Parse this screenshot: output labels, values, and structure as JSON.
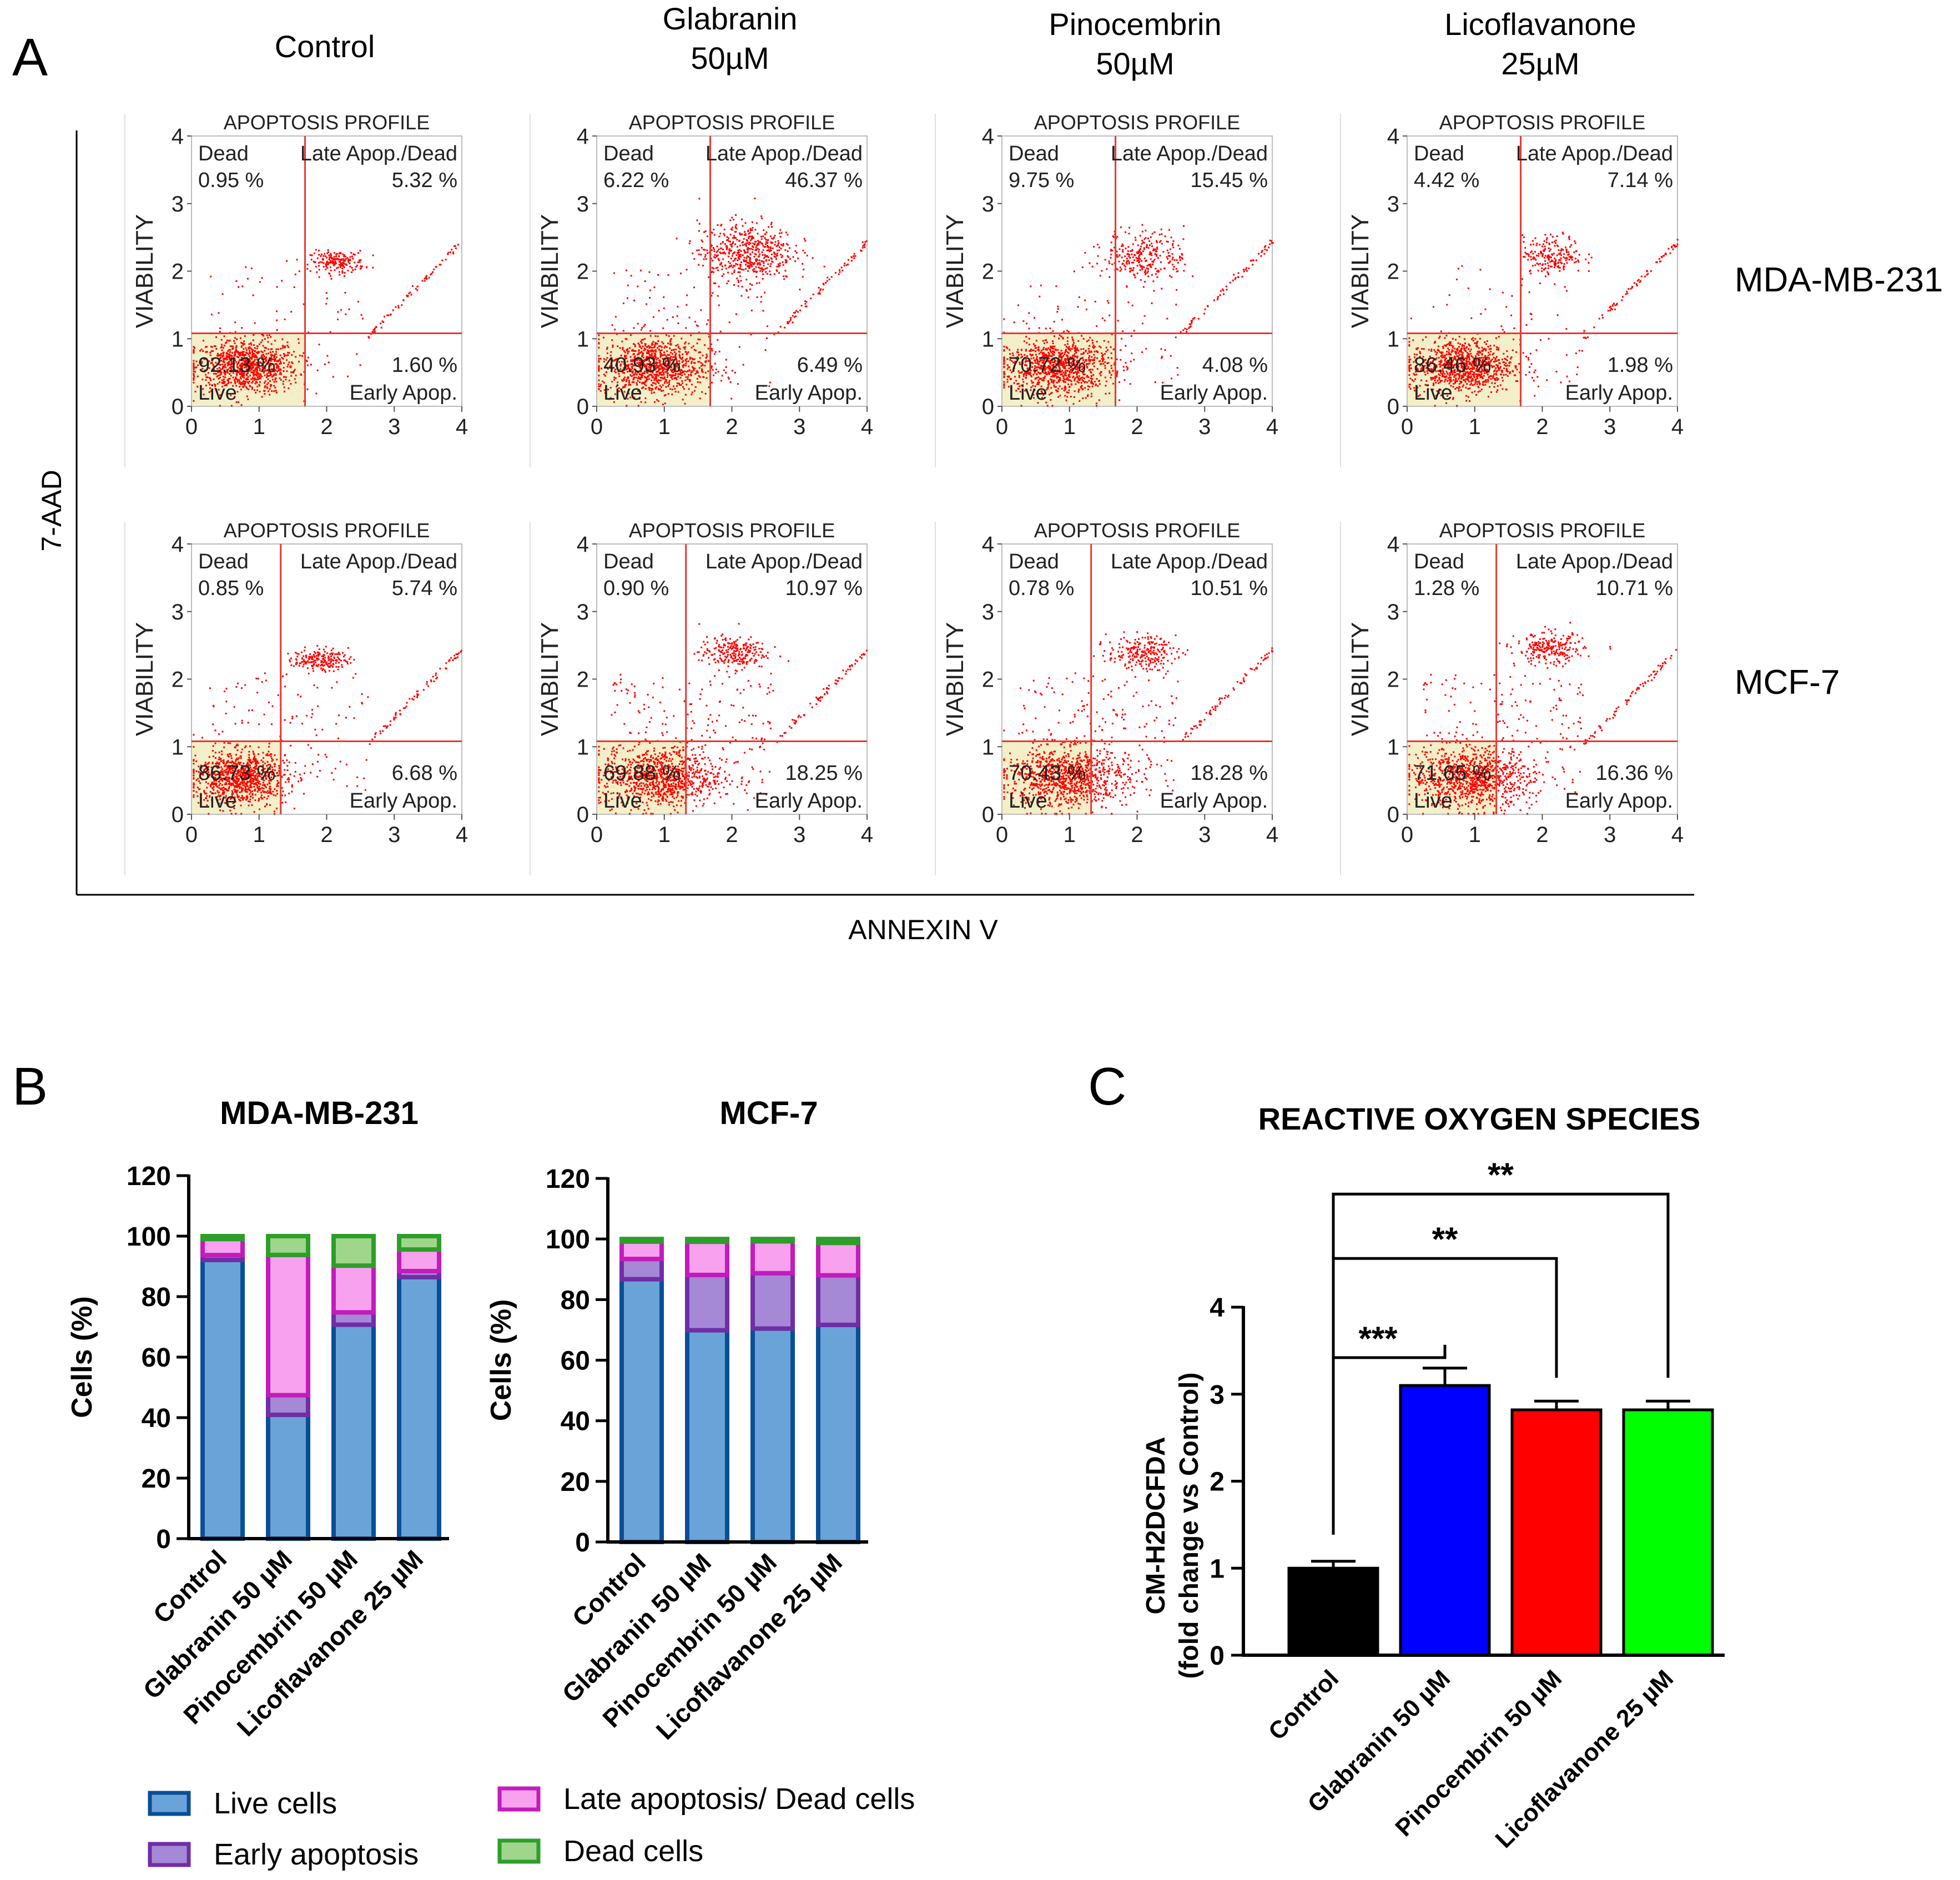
{
  "panel_labels": {
    "a": "A",
    "b": "B",
    "c": "C"
  },
  "colors": {
    "red": "#ff0000",
    "quadrant_line": "#e53935",
    "live_bg": "#f3efc8",
    "live_fill": "#6aa3d8",
    "live_edge": "#0a4f96",
    "early_fill": "#a589d6",
    "early_edge": "#6f2ea6",
    "late_fill": "#f7a1ef",
    "late_edge": "#c21cba",
    "dead_fill": "#9fd68c",
    "dead_edge": "#2e9e2a",
    "ros_control": "#000000",
    "ros_glabranin": "#0000ff",
    "ros_pinocembrin": "#ff0000",
    "ros_licoflavanone": "#00ff00"
  },
  "panel_a": {
    "columns": [
      "Control",
      "Glabranin\n50µM",
      "Pinocembrin\n50µM",
      "Licoflavanone\n25µM"
    ],
    "rows": [
      "MDA-MB-231",
      "MCF-7"
    ],
    "y_axis_label": "7-AAD",
    "x_axis_label": "ANNEXIN V",
    "plot_title": "APOPTOSIS PROFILE",
    "plot_ylabel": "VIABILITY",
    "ticks": [
      "0",
      "1",
      "2",
      "3",
      "4"
    ],
    "quadrant_names": {
      "dead": "Dead",
      "late": "Late Apop./Dead",
      "live": "Live",
      "early": "Early Apop."
    }
  },
  "chart_data": [
    {
      "type": "scatter",
      "title": "APOPTOSIS PROFILE",
      "xlabel": "ANNEXIN V",
      "ylabel": "VIABILITY",
      "xlim": [
        0,
        4
      ],
      "ylim": [
        0,
        4
      ],
      "gates": {
        "x": 1.68,
        "y": 1.08
      },
      "cell_line": "MDA-MB-231",
      "treatment": "Control",
      "quadrants": {
        "dead": "0.95 %",
        "late": "5.32 %",
        "live": "92.13 %",
        "early": "1.60 %"
      },
      "clusters": [
        {
          "name": "live",
          "cx": 0.8,
          "cy": 0.6,
          "sx": 0.38,
          "sy": 0.2
        },
        {
          "name": "late",
          "cx": 2.15,
          "cy": 2.15,
          "sx": 0.2,
          "sy": 0.08
        }
      ]
    },
    {
      "type": "scatter",
      "title": "APOPTOSIS PROFILE",
      "xlabel": "ANNEXIN V",
      "ylabel": "VIABILITY",
      "xlim": [
        0,
        4
      ],
      "ylim": [
        0,
        4
      ],
      "gates": {
        "x": 1.68,
        "y": 1.08
      },
      "cell_line": "MDA-MB-231",
      "treatment": "Glabranin 50µM",
      "quadrants": {
        "dead": "6.22 %",
        "late": "46.37 %",
        "live": "40.93 %",
        "early": "6.49 %"
      },
      "clusters": [
        {
          "name": "live",
          "cx": 0.85,
          "cy": 0.6,
          "sx": 0.4,
          "sy": 0.22
        },
        {
          "name": "late",
          "cx": 2.2,
          "cy": 2.3,
          "sx": 0.35,
          "sy": 0.22
        }
      ]
    },
    {
      "type": "scatter",
      "title": "APOPTOSIS PROFILE",
      "xlabel": "ANNEXIN V",
      "ylabel": "VIABILITY",
      "xlim": [
        0,
        4
      ],
      "ylim": [
        0,
        4
      ],
      "gates": {
        "x": 1.68,
        "y": 1.08
      },
      "cell_line": "MDA-MB-231",
      "treatment": "Pinocembrin 50µM",
      "quadrants": {
        "dead": "9.75 %",
        "late": "15.45 %",
        "live": "70.72 %",
        "early": "4.08 %"
      },
      "clusters": [
        {
          "name": "live",
          "cx": 0.8,
          "cy": 0.6,
          "sx": 0.4,
          "sy": 0.22
        },
        {
          "name": "late",
          "cx": 2.1,
          "cy": 2.25,
          "sx": 0.3,
          "sy": 0.18
        }
      ]
    },
    {
      "type": "scatter",
      "title": "APOPTOSIS PROFILE",
      "xlabel": "ANNEXIN V",
      "ylabel": "VIABILITY",
      "xlim": [
        0,
        4
      ],
      "ylim": [
        0,
        4
      ],
      "gates": {
        "x": 1.68,
        "y": 1.08
      },
      "cell_line": "MDA-MB-231",
      "treatment": "Licoflavanone 25µM",
      "quadrants": {
        "dead": "4.42 %",
        "late": "7.14 %",
        "live": "86.46 %",
        "early": "1.98 %"
      },
      "clusters": [
        {
          "name": "live",
          "cx": 0.8,
          "cy": 0.6,
          "sx": 0.38,
          "sy": 0.2
        },
        {
          "name": "late",
          "cx": 2.15,
          "cy": 2.25,
          "sx": 0.22,
          "sy": 0.14
        }
      ]
    },
    {
      "type": "scatter",
      "title": "APOPTOSIS PROFILE",
      "xlabel": "ANNEXIN V",
      "ylabel": "VIABILITY",
      "xlim": [
        0,
        4
      ],
      "ylim": [
        0,
        4
      ],
      "gates": {
        "x": 1.32,
        "y": 1.08
      },
      "cell_line": "MCF-7",
      "treatment": "Control",
      "quadrants": {
        "dead": "0.85 %",
        "late": "5.74 %",
        "live": "86.73 %",
        "early": "6.68 %"
      },
      "clusters": [
        {
          "name": "live",
          "cx": 0.7,
          "cy": 0.55,
          "sx": 0.35,
          "sy": 0.2
        },
        {
          "name": "late",
          "cx": 1.9,
          "cy": 2.3,
          "sx": 0.2,
          "sy": 0.08
        }
      ]
    },
    {
      "type": "scatter",
      "title": "APOPTOSIS PROFILE",
      "xlabel": "ANNEXIN V",
      "ylabel": "VIABILITY",
      "xlim": [
        0,
        4
      ],
      "ylim": [
        0,
        4
      ],
      "gates": {
        "x": 1.32,
        "y": 1.08
      },
      "cell_line": "MCF-7",
      "treatment": "Glabranin 50µM",
      "quadrants": {
        "dead": "0.90 %",
        "late": "10.97 %",
        "live": "69.88 %",
        "early": "18.25 %"
      },
      "clusters": [
        {
          "name": "live",
          "cx": 0.95,
          "cy": 0.55,
          "sx": 0.45,
          "sy": 0.22
        },
        {
          "name": "late",
          "cx": 2.0,
          "cy": 2.4,
          "sx": 0.25,
          "sy": 0.12
        }
      ]
    },
    {
      "type": "scatter",
      "title": "APOPTOSIS PROFILE",
      "xlabel": "ANNEXIN V",
      "ylabel": "VIABILITY",
      "xlim": [
        0,
        4
      ],
      "ylim": [
        0,
        4
      ],
      "gates": {
        "x": 1.32,
        "y": 1.08
      },
      "cell_line": "MCF-7",
      "treatment": "Pinocembrin 50µM",
      "quadrants": {
        "dead": "0.78 %",
        "late": "10.51 %",
        "live": "70.43 %",
        "early": "18.28 %"
      },
      "clusters": [
        {
          "name": "live",
          "cx": 0.95,
          "cy": 0.55,
          "sx": 0.45,
          "sy": 0.22
        },
        {
          "name": "late",
          "cx": 2.05,
          "cy": 2.4,
          "sx": 0.25,
          "sy": 0.12
        }
      ]
    },
    {
      "type": "scatter",
      "title": "APOPTOSIS PROFILE",
      "xlabel": "ANNEXIN V",
      "ylabel": "VIABILITY",
      "xlim": [
        0,
        4
      ],
      "ylim": [
        0,
        4
      ],
      "gates": {
        "x": 1.32,
        "y": 1.08
      },
      "cell_line": "MCF-7",
      "treatment": "Licoflavanone 25µM",
      "quadrants": {
        "dead": "1.28 %",
        "late": "10.71 %",
        "live": "71.65 %",
        "early": "16.36 %"
      },
      "clusters": [
        {
          "name": "live",
          "cx": 0.95,
          "cy": 0.55,
          "sx": 0.45,
          "sy": 0.22
        },
        {
          "name": "late",
          "cx": 2.1,
          "cy": 2.45,
          "sx": 0.25,
          "sy": 0.12
        }
      ]
    },
    {
      "type": "bar",
      "stacked": true,
      "title": "MDA-MB-231",
      "ylabel": "Cells (%)",
      "ylim": [
        0,
        120
      ],
      "yticks": [
        0,
        20,
        40,
        60,
        80,
        100,
        120
      ],
      "categories": [
        "Control",
        "Glabranin 50 µM",
        "Pinocembrin 50 µM",
        "Licoflavanone 25 µM"
      ],
      "series": [
        {
          "name": "Live cells",
          "values": [
            92.13,
            40.93,
            70.72,
            86.46
          ]
        },
        {
          "name": "Early apoptosis",
          "values": [
            1.6,
            6.49,
            4.08,
            1.98
          ]
        },
        {
          "name": "Late apoptosis/ Dead cells",
          "values": [
            5.32,
            46.37,
            15.45,
            7.14
          ]
        },
        {
          "name": "Dead cells",
          "values": [
            0.95,
            6.22,
            9.75,
            4.42
          ]
        }
      ]
    },
    {
      "type": "bar",
      "stacked": true,
      "title": "MCF-7",
      "ylabel": "Cells (%)",
      "ylim": [
        0,
        120
      ],
      "yticks": [
        0,
        20,
        40,
        60,
        80,
        100,
        120
      ],
      "categories": [
        "Control",
        "Glabranin 50 µM",
        "Pinocembrin 50 µM",
        "Licoflavanone 25 µM"
      ],
      "series": [
        {
          "name": "Live cells",
          "values": [
            86.73,
            69.88,
            70.43,
            71.65
          ]
        },
        {
          "name": "Early apoptosis",
          "values": [
            6.68,
            18.25,
            18.28,
            16.36
          ]
        },
        {
          "name": "Late apoptosis/ Dead cells",
          "values": [
            5.74,
            10.97,
            10.51,
            10.71
          ]
        },
        {
          "name": "Dead cells",
          "values": [
            0.85,
            0.9,
            0.78,
            1.28
          ]
        }
      ]
    },
    {
      "type": "bar",
      "title": "REACTIVE OXYGEN SPECIES",
      "ylabel": "CM-H2DCFDA\n(fold change vs Control)",
      "ylim": [
        0,
        4
      ],
      "yticks": [
        0,
        1,
        2,
        3,
        4
      ],
      "categories": [
        "Control",
        "Glabranin 50 µM",
        "Pinocembrin 50 µM",
        "Licoflavanone 25 µM"
      ],
      "values": [
        1.0,
        3.1,
        2.82,
        2.82
      ],
      "errors": [
        0.08,
        0.2,
        0.1,
        0.1
      ],
      "significance": [
        {
          "from": 0,
          "to": 1,
          "label": "***",
          "level": 3.42
        },
        {
          "from": 0,
          "to": 2,
          "label": "**",
          "level": 4.56
        },
        {
          "from": 0,
          "to": 3,
          "label": "**",
          "level": 5.3
        }
      ]
    }
  ],
  "legend": [
    "Live cells",
    "Early apoptosis",
    "Late apoptosis/ Dead cells",
    "Dead cells"
  ]
}
